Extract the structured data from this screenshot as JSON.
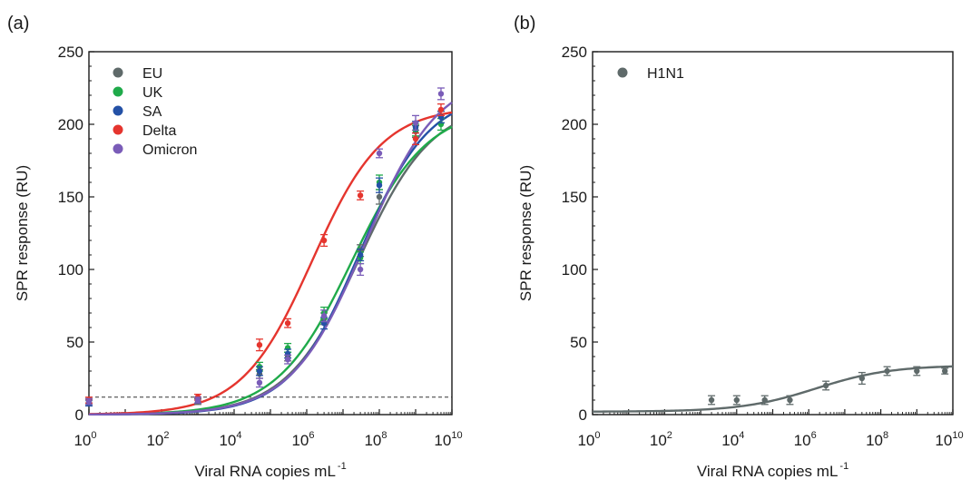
{
  "chart_data": [
    {
      "type": "scatter",
      "panel_label": "(a)",
      "xlabel": "Viral RNA copies mL",
      "xlabel_exponent": "-1",
      "ylabel": "SPR response (RU)",
      "x_scale": "log10",
      "xlim": [
        1,
        10000000000
      ],
      "ylim": [
        0,
        250
      ],
      "x_ticks": [
        1,
        100,
        10000,
        1000000,
        100000000,
        10000000000
      ],
      "x_tick_base": "10",
      "x_tick_exponents": [
        "0",
        "2",
        "4",
        "6",
        "8",
        "10"
      ],
      "y_ticks": [
        "0",
        "50",
        "100",
        "150",
        "200",
        "250"
      ],
      "grid": false,
      "legend_position": "top-left",
      "threshold_line_y": 12,
      "series": [
        {
          "name": "EU",
          "color": "#5f6a6a",
          "x": [
            1,
            1000,
            50000,
            300000,
            3000000,
            30000000,
            100000000,
            1000000000,
            5000000000
          ],
          "y": [
            8,
            9,
            28,
            40,
            66,
            113,
            150,
            195,
            205
          ],
          "err": [
            2,
            2,
            3,
            3,
            4,
            4,
            5,
            4,
            4
          ],
          "fit": {
            "bottom": 0,
            "top": 215,
            "logEC50": 7.45,
            "hill": 0.43
          }
        },
        {
          "name": "UK",
          "color": "#1faa4a",
          "x": [
            1,
            1000,
            50000,
            300000,
            3000000,
            30000000,
            100000000,
            1000000000,
            5000000000
          ],
          "y": [
            9,
            10,
            33,
            46,
            70,
            108,
            160,
            196,
            200
          ],
          "err": [
            2,
            2,
            3,
            3,
            4,
            4,
            5,
            4,
            4
          ],
          "fit": {
            "bottom": 0,
            "top": 212,
            "logEC50": 7.25,
            "hill": 0.42
          }
        },
        {
          "name": "SA",
          "color": "#2451a6",
          "x": [
            1,
            1000,
            50000,
            300000,
            3000000,
            30000000,
            100000000,
            1000000000,
            5000000000
          ],
          "y": [
            8,
            10,
            30,
            42,
            63,
            110,
            158,
            198,
            205
          ],
          "err": [
            2,
            2,
            3,
            3,
            4,
            4,
            5,
            4,
            4
          ],
          "fit": {
            "bottom": 0,
            "top": 222,
            "logEC50": 7.45,
            "hill": 0.45
          }
        },
        {
          "name": "Delta",
          "color": "#e5352e",
          "x": [
            1,
            1000,
            50000,
            300000,
            3000000,
            30000000,
            1000000000,
            5000000000
          ],
          "y": [
            10,
            12,
            48,
            63,
            120,
            151,
            190,
            210
          ],
          "err": [
            2,
            2,
            4,
            3,
            4,
            3,
            4,
            4
          ],
          "fit": {
            "bottom": 0,
            "top": 212,
            "logEC50": 6.15,
            "hill": 0.45
          }
        },
        {
          "name": "Omicron",
          "color": "#7a5cb8",
          "x": [
            1,
            1000,
            50000,
            300000,
            3000000,
            30000000,
            100000000,
            1000000000,
            5000000000
          ],
          "y": [
            9,
            10,
            22,
            38,
            68,
            100,
            180,
            201,
            221
          ],
          "err": [
            2,
            2,
            3,
            3,
            4,
            4,
            3,
            5,
            4
          ],
          "fit": {
            "bottom": 0,
            "top": 235,
            "logEC50": 7.6,
            "hill": 0.43
          }
        }
      ]
    },
    {
      "type": "scatter",
      "panel_label": "(b)",
      "xlabel": "Viral RNA copies mL",
      "xlabel_exponent": "-1",
      "ylabel": "SPR response (RU)",
      "x_scale": "log10",
      "xlim": [
        1,
        10000000000
      ],
      "ylim": [
        0,
        250
      ],
      "x_ticks": [
        1,
        100,
        10000,
        1000000,
        100000000,
        10000000000
      ],
      "x_tick_base": "10",
      "x_tick_exponents": [
        "0",
        "2",
        "4",
        "6",
        "8",
        "10"
      ],
      "y_ticks": [
        "0",
        "50",
        "100",
        "150",
        "200",
        "250"
      ],
      "grid": false,
      "legend_position": "top-left",
      "series": [
        {
          "name": "H1N1",
          "color": "#5f6a6a",
          "x": [
            2000,
            10000,
            60000,
            300000,
            3000000,
            30000000,
            150000000,
            1000000000,
            6000000000
          ],
          "y": [
            10,
            10,
            10,
            10,
            20,
            25,
            30,
            30,
            30
          ],
          "err": [
            3,
            3,
            3,
            3,
            3,
            4,
            3,
            3,
            2
          ],
          "fit": {
            "bottom": 2,
            "top": 34,
            "logEC50": 6.2,
            "hill": 0.42
          }
        }
      ]
    }
  ]
}
